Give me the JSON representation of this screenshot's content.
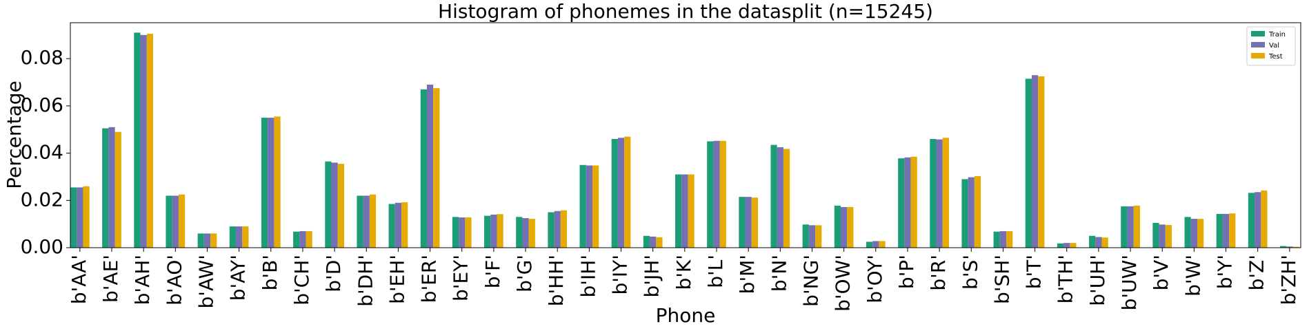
{
  "chart_data": {
    "type": "bar",
    "title": "Histogram of phonemes in the datasplit (n=15245)",
    "x_label": "Phone",
    "y_label": "Percentage",
    "categories": [
      "b'AA'",
      "b'AE'",
      "b'AH'",
      "b'AO'",
      "b'AW'",
      "b'AY'",
      "b'B'",
      "b'CH'",
      "b'D'",
      "b'DH'",
      "b'EH'",
      "b'ER'",
      "b'EY'",
      "b'F'",
      "b'G'",
      "b'HH'",
      "b'IH'",
      "b'IY'",
      "b'JH'",
      "b'K'",
      "b'L'",
      "b'M'",
      "b'N'",
      "b'NG'",
      "b'OW'",
      "b'OY'",
      "b'P'",
      "b'R'",
      "b'S'",
      "b'SH'",
      "b'T'",
      "b'TH'",
      "b'UH'",
      "b'UW'",
      "b'V'",
      "b'W'",
      "b'Y'",
      "b'Z'",
      "b'ZH'"
    ],
    "series": [
      {
        "name": "Train",
        "color": "#1b9e77",
        "values": [
          0.0255,
          0.0505,
          0.091,
          0.022,
          0.006,
          0.009,
          0.055,
          0.0068,
          0.0365,
          0.022,
          0.0185,
          0.067,
          0.013,
          0.0135,
          0.013,
          0.015,
          0.035,
          0.046,
          0.005,
          0.031,
          0.045,
          0.0215,
          0.0435,
          0.0098,
          0.0178,
          0.0025,
          0.0378,
          0.046,
          0.029,
          0.0068,
          0.0715,
          0.0018,
          0.005,
          0.0175,
          0.0105,
          0.013,
          0.0143,
          0.0232,
          0.0007
        ]
      },
      {
        "name": "Val",
        "color": "#7570b3",
        "values": [
          0.0255,
          0.051,
          0.09,
          0.022,
          0.006,
          0.009,
          0.055,
          0.007,
          0.036,
          0.022,
          0.019,
          0.069,
          0.0128,
          0.014,
          0.0125,
          0.0155,
          0.0348,
          0.0465,
          0.0047,
          0.031,
          0.0452,
          0.0215,
          0.0425,
          0.0095,
          0.0172,
          0.0028,
          0.0382,
          0.0458,
          0.0298,
          0.007,
          0.073,
          0.002,
          0.0045,
          0.0175,
          0.0098,
          0.0122,
          0.0143,
          0.0235,
          0.0005
        ]
      },
      {
        "name": "Test",
        "color": "#e6ab02",
        "values": [
          0.026,
          0.049,
          0.0905,
          0.0225,
          0.006,
          0.009,
          0.0555,
          0.007,
          0.0355,
          0.0225,
          0.0192,
          0.0675,
          0.0128,
          0.0142,
          0.0122,
          0.0158,
          0.0348,
          0.047,
          0.0044,
          0.031,
          0.0452,
          0.0212,
          0.0418,
          0.0095,
          0.0172,
          0.0028,
          0.0385,
          0.0465,
          0.0303,
          0.007,
          0.0725,
          0.002,
          0.0043,
          0.0178,
          0.0096,
          0.0122,
          0.0145,
          0.0242,
          0.0004
        ]
      }
    ],
    "ylim": [
      0,
      0.0952
    ],
    "yticks": [
      {
        "value": 0,
        "label": "0.00"
      },
      0.02,
      0.04,
      0.06,
      0.08
    ],
    "legend": "upper right"
  }
}
